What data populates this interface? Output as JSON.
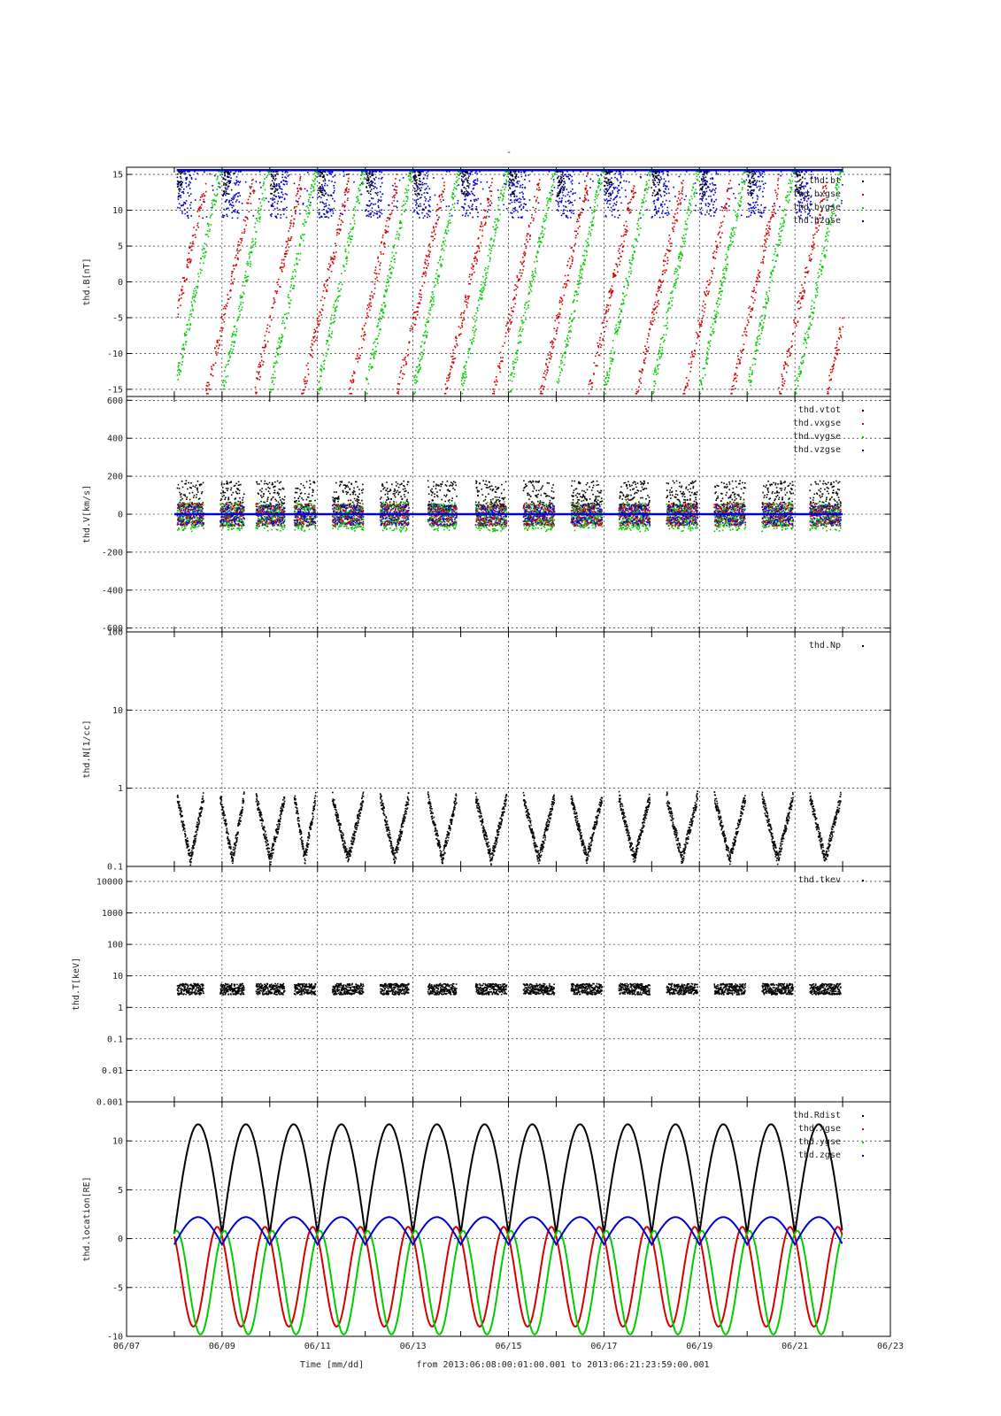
{
  "figure": {
    "title": "-",
    "footer": {
      "xlabel": "Time [mm/dd]",
      "range_text": "from 2013:06:08:00:01:00.001  to  2013:06:21:23:59:00.001"
    }
  },
  "chart_data": [
    {
      "type": "scatter",
      "panel": "magnetic-field",
      "ylabel": "thd.B[nT]",
      "ylim": [
        -16,
        16
      ],
      "yticks": [
        15,
        10,
        5,
        0,
        -5,
        -10,
        -15
      ],
      "ytick_labels": [
        "15",
        "10",
        "5",
        "0",
        "-5",
        "-10",
        "-15"
      ],
      "grid": true,
      "legend_position": "top-right",
      "series": [
        {
          "name": "thd.bt",
          "color": "#000000"
        },
        {
          "name": "thd.bxgse",
          "color": "#d40000"
        },
        {
          "name": "thd.bygse",
          "color": "#00cc00"
        },
        {
          "name": "thd.bzgse",
          "color": "#0000cc"
        }
      ]
    },
    {
      "type": "scatter",
      "panel": "velocity",
      "ylabel": "thd.V[km/s]",
      "ylim": [
        -620,
        620
      ],
      "yticks": [
        600,
        400,
        200,
        0,
        -200,
        -400,
        -600
      ],
      "ytick_labels": [
        "600",
        "400",
        "200",
        "0",
        "-200",
        "-400",
        "-600"
      ],
      "grid": true,
      "legend_position": "top-right",
      "series": [
        {
          "name": "thd.vtot",
          "color": "#000000"
        },
        {
          "name": "thd.vxgse",
          "color": "#d40000"
        },
        {
          "name": "thd.vygse",
          "color": "#00cc00"
        },
        {
          "name": "thd.vzgse",
          "color": "#0000cc"
        }
      ]
    },
    {
      "type": "scatter",
      "panel": "density",
      "ylabel": "thd.N[1/cc]",
      "yscale": "log",
      "ylim": [
        0.1,
        100
      ],
      "yticks": [
        100,
        10,
        1,
        0.1
      ],
      "ytick_labels": [
        "100",
        "10",
        "1",
        "0.1"
      ],
      "grid": true,
      "legend_position": "top-right",
      "series": [
        {
          "name": "thd.Np",
          "color": "#000000"
        }
      ]
    },
    {
      "type": "scatter",
      "panel": "temperature",
      "ylabel": "thd.T[keV]",
      "yscale": "log",
      "ylim": [
        0.001,
        30000
      ],
      "yticks": [
        10000,
        1000,
        100,
        10,
        1,
        0.1,
        0.01,
        0.001
      ],
      "ytick_labels": [
        "10000",
        "1000",
        "100",
        "10",
        "1",
        "0.1",
        "0.01",
        "0.001"
      ],
      "grid": true,
      "legend_position": "top-right",
      "series": [
        {
          "name": "thd.tkev",
          "color": "#000000"
        }
      ]
    },
    {
      "type": "line",
      "panel": "location",
      "ylabel": "thd.location[RE]",
      "ylim": [
        -10,
        14
      ],
      "yticks": [
        10,
        5,
        0,
        -5,
        -10
      ],
      "ytick_labels": [
        "10",
        "5",
        "0",
        "-5",
        "-10"
      ],
      "grid": true,
      "legend_position": "top-right",
      "orbit_period_days": 1.0,
      "series": [
        {
          "name": "thd.Rdist",
          "color": "#000000",
          "min": 0.5,
          "max": 11.7
        },
        {
          "name": "thd.xgse",
          "color": "#d40000",
          "min": -9.0,
          "max": 1.2
        },
        {
          "name": "thd.ygse",
          "color": "#00cc00",
          "min": -9.8,
          "max": 0.8
        },
        {
          "name": "thd.zgse",
          "color": "#0000cc",
          "min": -0.6,
          "max": 2.2
        }
      ]
    }
  ],
  "x_axis": {
    "xlim": [
      "06/07",
      "06/23"
    ],
    "data_start": "06/08",
    "data_end": "06/21 23:59",
    "major_ticks": [
      "06/07",
      "06/09",
      "06/11",
      "06/13",
      "06/15",
      "06/17",
      "06/19",
      "06/21",
      "06/23"
    ]
  }
}
